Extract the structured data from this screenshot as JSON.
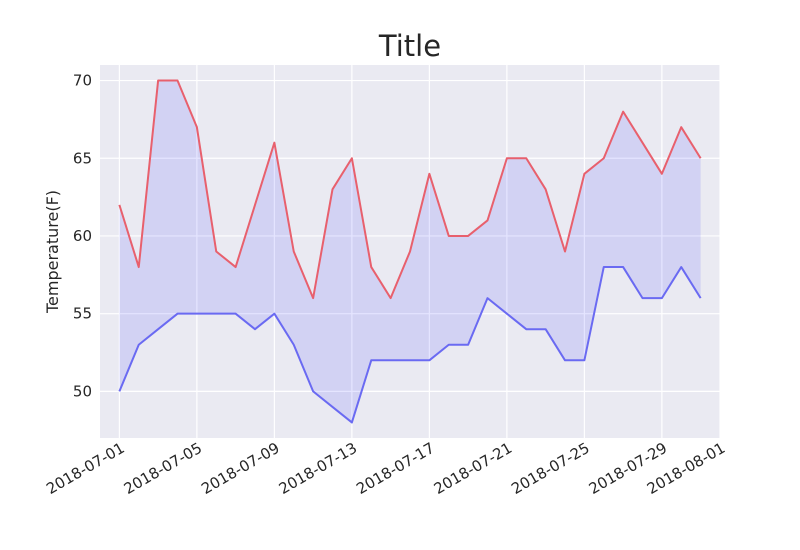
{
  "chart_data": {
    "type": "line",
    "title": "Title",
    "xlabel": "",
    "ylabel": "Temperature(F)",
    "ylim": [
      47.0,
      71.0
    ],
    "xlim": [
      "2018-06-30",
      "2018-08-01"
    ],
    "grid": true,
    "fill_between": {
      "color": "#0000ff",
      "alpha": 0.1
    },
    "x": [
      "2018-07-01",
      "2018-07-02",
      "2018-07-03",
      "2018-07-04",
      "2018-07-05",
      "2018-07-06",
      "2018-07-07",
      "2018-07-08",
      "2018-07-09",
      "2018-07-10",
      "2018-07-11",
      "2018-07-12",
      "2018-07-13",
      "2018-07-14",
      "2018-07-15",
      "2018-07-16",
      "2018-07-17",
      "2018-07-18",
      "2018-07-19",
      "2018-07-20",
      "2018-07-21",
      "2018-07-22",
      "2018-07-23",
      "2018-07-24",
      "2018-07-25",
      "2018-07-26",
      "2018-07-27",
      "2018-07-28",
      "2018-07-29",
      "2018-07-30",
      "2018-07-31"
    ],
    "series": [
      {
        "color": "#e8606d",
        "values": [
          62,
          58,
          70,
          70,
          67,
          59,
          58,
          62,
          66,
          59,
          56,
          63,
          65,
          58,
          56,
          59,
          64,
          60,
          60,
          61,
          65,
          65,
          63,
          59,
          64,
          65,
          68,
          66,
          64,
          67,
          65
        ]
      },
      {
        "color": "#6a6af2",
        "values": [
          50,
          53,
          54,
          55,
          55,
          55,
          55,
          54,
          55,
          53,
          50,
          49,
          48,
          52,
          52,
          52,
          52,
          53,
          53,
          56,
          55,
          54,
          54,
          52,
          52,
          58,
          58,
          56,
          56,
          58,
          56
        ]
      }
    ],
    "xticks": [
      "2018-07-01",
      "2018-07-05",
      "2018-07-09",
      "2018-07-13",
      "2018-07-17",
      "2018-07-21",
      "2018-07-25",
      "2018-07-29",
      "2018-08-01"
    ],
    "yticks": [
      50,
      55,
      60,
      65,
      70
    ]
  },
  "colors": {
    "plot_background": "#eaeaf2",
    "grid": "#ffffff",
    "text": "#262626"
  }
}
